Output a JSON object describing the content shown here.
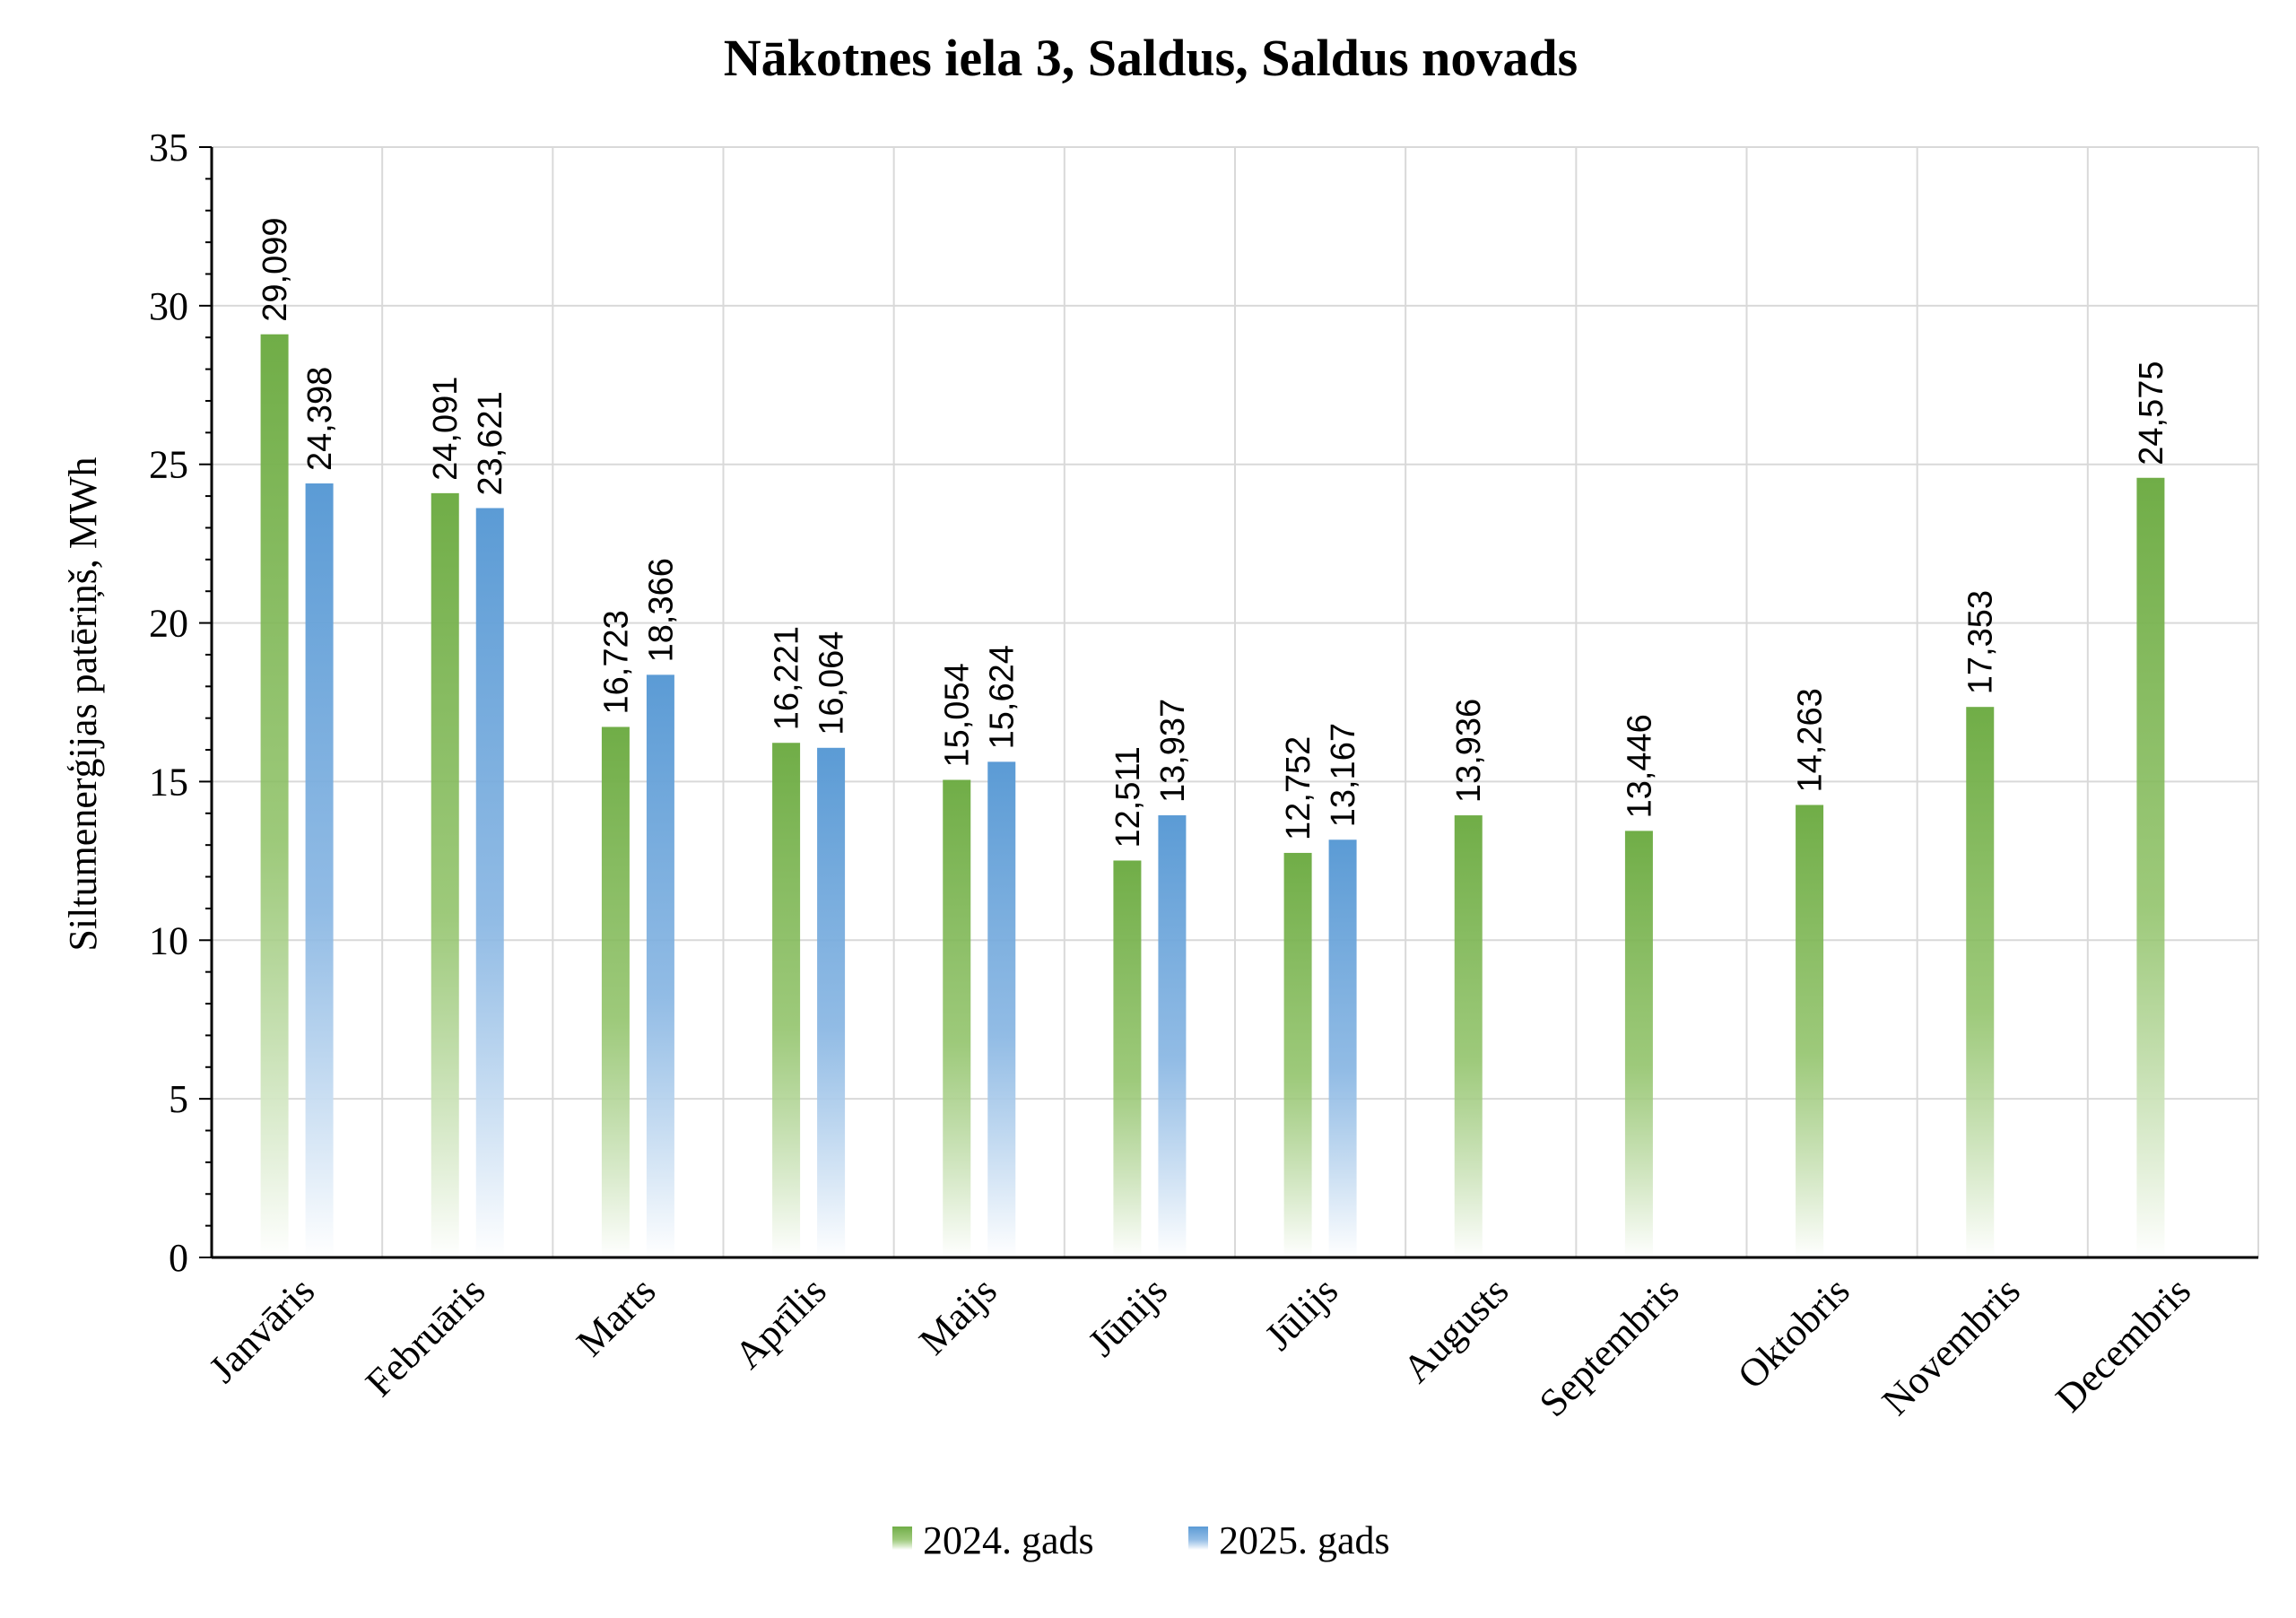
{
  "chart_data": {
    "type": "bar",
    "title": "Nākotnes iela 3, Saldus, Saldus novads",
    "xlabel": "",
    "ylabel": "Siltumenerģijas patēriņš, MWh",
    "ylim": [
      0,
      35
    ],
    "yticks": [
      "0",
      "5",
      "10",
      "15",
      "20",
      "25",
      "30",
      "35"
    ],
    "grid": true,
    "legend_position": "bottom",
    "categories": [
      "Janvāris",
      "Februāris",
      "Marts",
      "Aprīlis",
      "Maijs",
      "Jūnijs",
      "Jūlijs",
      "Augusts",
      "Septembris",
      "Oktobris",
      "Novembris",
      "Decembris"
    ],
    "series": [
      {
        "name": "2024. gads",
        "color": "#70ad47",
        "values": [
          29.099,
          24.091,
          16.723,
          16.221,
          15.054,
          12.511,
          12.752,
          13.936,
          13.446,
          14.263,
          17.353,
          24.575
        ],
        "labels": [
          "29,099",
          "24,091",
          "16,723",
          "16,221",
          "15,054",
          "12,511",
          "12,752",
          "13,936",
          "13,446",
          "14,263",
          "17,353",
          "24,575"
        ]
      },
      {
        "name": "2025. gads",
        "color": "#5b9bd5",
        "values": [
          24.398,
          23.621,
          18.366,
          16.064,
          15.624,
          13.937,
          13.167,
          null,
          null,
          null,
          null,
          null
        ],
        "labels": [
          "24,398",
          "23,621",
          "18,366",
          "16,064",
          "15,624",
          "13,937",
          "13,167",
          "",
          "",
          "",
          "",
          ""
        ]
      }
    ]
  }
}
